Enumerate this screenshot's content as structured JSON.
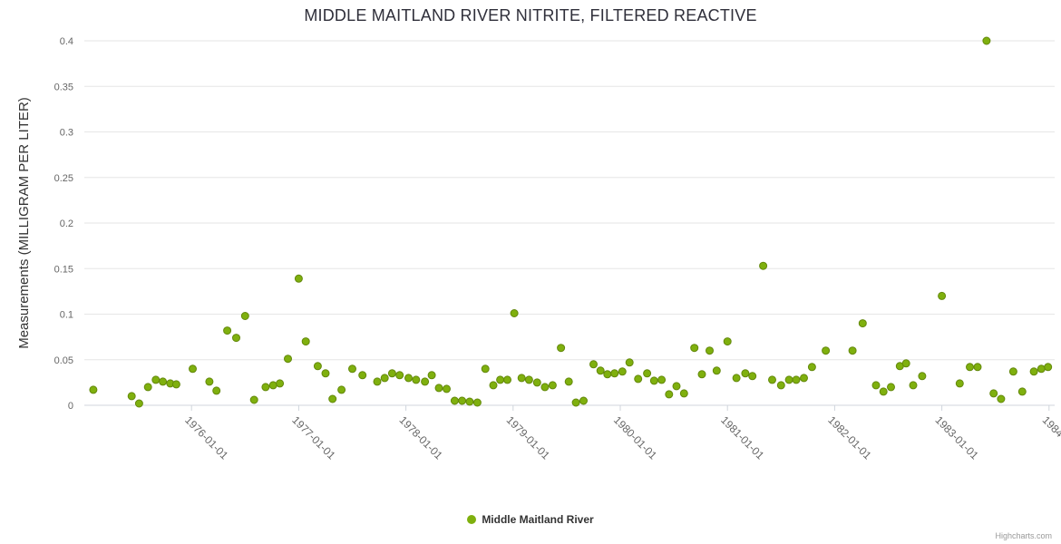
{
  "chart_data": {
    "type": "scatter",
    "title": "MIDDLE MAITLAND RIVER NITRITE, FILTERED REACTIVE",
    "xlabel": "",
    "ylabel": "Measurements (MILLIGRAM PER LITER)",
    "ylim": [
      0,
      0.4
    ],
    "ytick_interval": 0.05,
    "xlim": [
      "1975-01-01",
      "1984-01-20"
    ],
    "xticks": [
      "1976-01-01",
      "1977-01-01",
      "1978-01-01",
      "1979-01-01",
      "1980-01-01",
      "1981-01-01",
      "1982-01-01",
      "1983-01-01",
      "1984-01-01"
    ],
    "grid": true,
    "legend_position": "bottom-center",
    "credits": "Highcharts.com",
    "colors": {
      "grid": "#e6e6e6",
      "axis_line": "#d0d5dc",
      "tick_label": "#666666",
      "title": "#2f2f3a",
      "marker_fill": "#7fb00e",
      "marker_stroke": "#63880b",
      "credits": "#999999"
    },
    "series": [
      {
        "name": "Middle Maitland River",
        "points": [
          [
            "1975-02-01",
            0.017
          ],
          [
            "1975-06-10",
            0.01
          ],
          [
            "1975-07-05",
            0.002
          ],
          [
            "1975-08-05",
            0.02
          ],
          [
            "1975-09-01",
            0.028
          ],
          [
            "1975-09-25",
            0.026
          ],
          [
            "1975-10-20",
            0.024
          ],
          [
            "1975-11-10",
            0.023
          ],
          [
            "1976-01-05",
            0.04
          ],
          [
            "1976-03-01",
            0.026
          ],
          [
            "1976-03-25",
            0.016
          ],
          [
            "1976-05-01",
            0.082
          ],
          [
            "1976-06-01",
            0.074
          ],
          [
            "1976-07-01",
            0.098
          ],
          [
            "1976-08-01",
            0.006
          ],
          [
            "1976-09-10",
            0.02
          ],
          [
            "1976-10-05",
            0.022
          ],
          [
            "1976-10-28",
            0.024
          ],
          [
            "1976-11-25",
            0.051
          ],
          [
            "1977-01-01",
            0.139
          ],
          [
            "1977-01-25",
            0.07
          ],
          [
            "1977-03-05",
            0.043
          ],
          [
            "1977-04-01",
            0.035
          ],
          [
            "1977-04-25",
            0.007
          ],
          [
            "1977-05-25",
            0.017
          ],
          [
            "1977-07-01",
            0.04
          ],
          [
            "1977-08-05",
            0.033
          ],
          [
            "1977-09-25",
            0.026
          ],
          [
            "1977-10-20",
            0.03
          ],
          [
            "1977-11-15",
            0.035
          ],
          [
            "1977-12-10",
            0.033
          ],
          [
            "1978-01-10",
            0.03
          ],
          [
            "1978-02-05",
            0.028
          ],
          [
            "1978-03-05",
            0.026
          ],
          [
            "1978-03-28",
            0.033
          ],
          [
            "1978-04-22",
            0.019
          ],
          [
            "1978-05-18",
            0.018
          ],
          [
            "1978-06-15",
            0.005
          ],
          [
            "1978-07-10",
            0.005
          ],
          [
            "1978-08-05",
            0.004
          ],
          [
            "1978-09-01",
            0.003
          ],
          [
            "1978-09-28",
            0.04
          ],
          [
            "1978-10-25",
            0.022
          ],
          [
            "1978-11-18",
            0.028
          ],
          [
            "1978-12-12",
            0.028
          ],
          [
            "1979-01-05",
            0.101
          ],
          [
            "1979-01-30",
            0.03
          ],
          [
            "1979-02-25",
            0.028
          ],
          [
            "1979-03-22",
            0.025
          ],
          [
            "1979-04-18",
            0.02
          ],
          [
            "1979-05-14",
            0.022
          ],
          [
            "1979-06-12",
            0.063
          ],
          [
            "1979-07-08",
            0.026
          ],
          [
            "1979-08-02",
            0.003
          ],
          [
            "1979-08-28",
            0.005
          ],
          [
            "1979-10-01",
            0.045
          ],
          [
            "1979-10-25",
            0.038
          ],
          [
            "1979-11-18",
            0.034
          ],
          [
            "1979-12-12",
            0.035
          ],
          [
            "1980-01-08",
            0.037
          ],
          [
            "1980-02-02",
            0.047
          ],
          [
            "1980-03-01",
            0.029
          ],
          [
            "1980-04-01",
            0.035
          ],
          [
            "1980-04-25",
            0.027
          ],
          [
            "1980-05-20",
            0.028
          ],
          [
            "1980-06-15",
            0.012
          ],
          [
            "1980-07-10",
            0.021
          ],
          [
            "1980-08-05",
            0.013
          ],
          [
            "1980-09-10",
            0.063
          ],
          [
            "1980-10-05",
            0.034
          ],
          [
            "1980-11-01",
            0.06
          ],
          [
            "1980-11-25",
            0.038
          ],
          [
            "1981-01-01",
            0.07
          ],
          [
            "1981-02-01",
            0.03
          ],
          [
            "1981-03-01",
            0.035
          ],
          [
            "1981-03-25",
            0.032
          ],
          [
            "1981-05-01",
            0.153
          ],
          [
            "1981-06-01",
            0.028
          ],
          [
            "1981-07-01",
            0.022
          ],
          [
            "1981-07-28",
            0.028
          ],
          [
            "1981-08-22",
            0.028
          ],
          [
            "1981-09-18",
            0.03
          ],
          [
            "1981-10-15",
            0.042
          ],
          [
            "1981-12-01",
            0.06
          ],
          [
            "1982-03-01",
            0.06
          ],
          [
            "1982-04-05",
            0.09
          ],
          [
            "1982-05-20",
            0.022
          ],
          [
            "1982-06-15",
            0.015
          ],
          [
            "1982-07-10",
            0.02
          ],
          [
            "1982-08-10",
            0.043
          ],
          [
            "1982-09-01",
            0.046
          ],
          [
            "1982-09-25",
            0.022
          ],
          [
            "1982-10-25",
            0.032
          ],
          [
            "1983-01-01",
            0.12
          ],
          [
            "1983-03-01",
            0.024
          ],
          [
            "1983-04-05",
            0.042
          ],
          [
            "1983-05-01",
            0.042
          ],
          [
            "1983-06-01",
            0.4
          ],
          [
            "1983-06-25",
            0.013
          ],
          [
            "1983-07-20",
            0.007
          ],
          [
            "1983-09-01",
            0.037
          ],
          [
            "1983-10-01",
            0.015
          ],
          [
            "1983-11-10",
            0.037
          ],
          [
            "1983-12-05",
            0.04
          ],
          [
            "1983-12-28",
            0.042
          ]
        ]
      }
    ]
  }
}
